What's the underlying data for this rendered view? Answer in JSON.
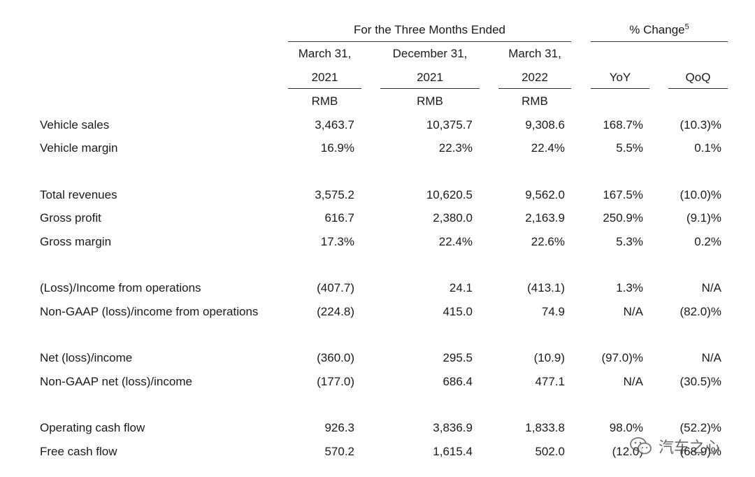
{
  "header": {
    "period_group": "For the Three Months Ended",
    "change_group": "% Change",
    "change_footnote": "5",
    "columns": [
      {
        "line1": "March 31,",
        "line2": "2021",
        "currency": "RMB"
      },
      {
        "line1": "December 31,",
        "line2": "2021",
        "currency": "RMB"
      },
      {
        "line1": "March 31,",
        "line2": "2022",
        "currency": "RMB"
      }
    ],
    "change_columns": [
      "YoY",
      "QoQ"
    ]
  },
  "rows": [
    {
      "label": "Vehicle sales",
      "values": [
        "3,463.7",
        "10,375.7",
        "9,308.6",
        "168.7%",
        "(10.3)%"
      ]
    },
    {
      "label": "Vehicle margin",
      "values": [
        "16.9%",
        "22.3%",
        "22.4%",
        "5.5%",
        "0.1%"
      ]
    },
    {
      "label": "Total revenues",
      "values": [
        "3,575.2",
        "10,620.5",
        "9,562.0",
        "167.5%",
        "(10.0)%"
      ]
    },
    {
      "label": "Gross profit",
      "values": [
        "616.7",
        "2,380.0",
        "2,163.9",
        "250.9%",
        "(9.1)%"
      ]
    },
    {
      "label": "Gross margin",
      "values": [
        "17.3%",
        "22.4%",
        "22.6%",
        "5.3%",
        "0.2%"
      ]
    },
    {
      "label": "(Loss)/Income from operations",
      "values": [
        "(407.7)",
        "24.1",
        "(413.1)",
        "1.3%",
        "N/A"
      ]
    },
    {
      "label": "Non-GAAP (loss)/income from operations",
      "values": [
        "(224.8)",
        "415.0",
        "74.9",
        "N/A",
        "(82.0)%"
      ]
    },
    {
      "label": "Net (loss)/income",
      "values": [
        "(360.0)",
        "295.5",
        "(10.9)",
        "(97.0)%",
        "N/A"
      ]
    },
    {
      "label": "Non-GAAP net (loss)/income",
      "values": [
        "(177.0)",
        "686.4",
        "477.1",
        "N/A",
        "(30.5)%"
      ]
    },
    {
      "label": "Operating cash flow",
      "values": [
        "926.3",
        "3,836.9",
        "1,833.8",
        "98.0%",
        "(52.2)%"
      ]
    },
    {
      "label": "Free cash flow",
      "values": [
        "570.2",
        "1,615.4",
        "502.0",
        "(12.0)",
        "(68.9)%"
      ]
    }
  ],
  "watermark": {
    "text": "汽车之心",
    "icon": "wechat-icon"
  }
}
